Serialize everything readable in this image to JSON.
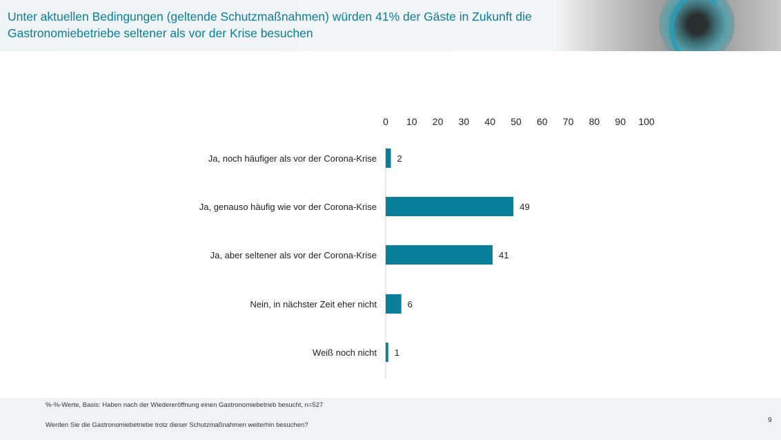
{
  "header": {
    "title": "Unter aktuellen Bedingungen (geltende Schutzmaßnahmen) würden 41% der Gäste in Zukunft die Gastronomiebetriebe seltener als vor der Krise besuchen"
  },
  "chart_data": {
    "type": "bar",
    "orientation": "horizontal",
    "categories": [
      "Ja, noch häufiger als vor der Corona-Krise",
      "Ja, genauso häufig wie vor der Corona-Krise",
      "Ja, aber seltener als vor der Corona-Krise",
      "Nein, in nächster Zeit eher nicht",
      "Weiß noch nicht"
    ],
    "values": [
      2,
      49,
      41,
      6,
      1
    ],
    "xlim": [
      0,
      100
    ],
    "xticks": [
      0,
      10,
      20,
      30,
      40,
      50,
      60,
      70,
      80,
      90,
      100
    ],
    "xaxis_position": "top",
    "grid": false,
    "bar_color": "#0a7f99"
  },
  "footer": {
    "note": "%-%-Werte, Basis: Haben nach der Wiedereröffnung einen Gastronomiebetrieb besucht, n=527",
    "question": "Werden Sie die Gastronomiebetriebe trotz dieser Schutzmaßnahmen weiterhin besuchen?",
    "page_number": "9"
  }
}
